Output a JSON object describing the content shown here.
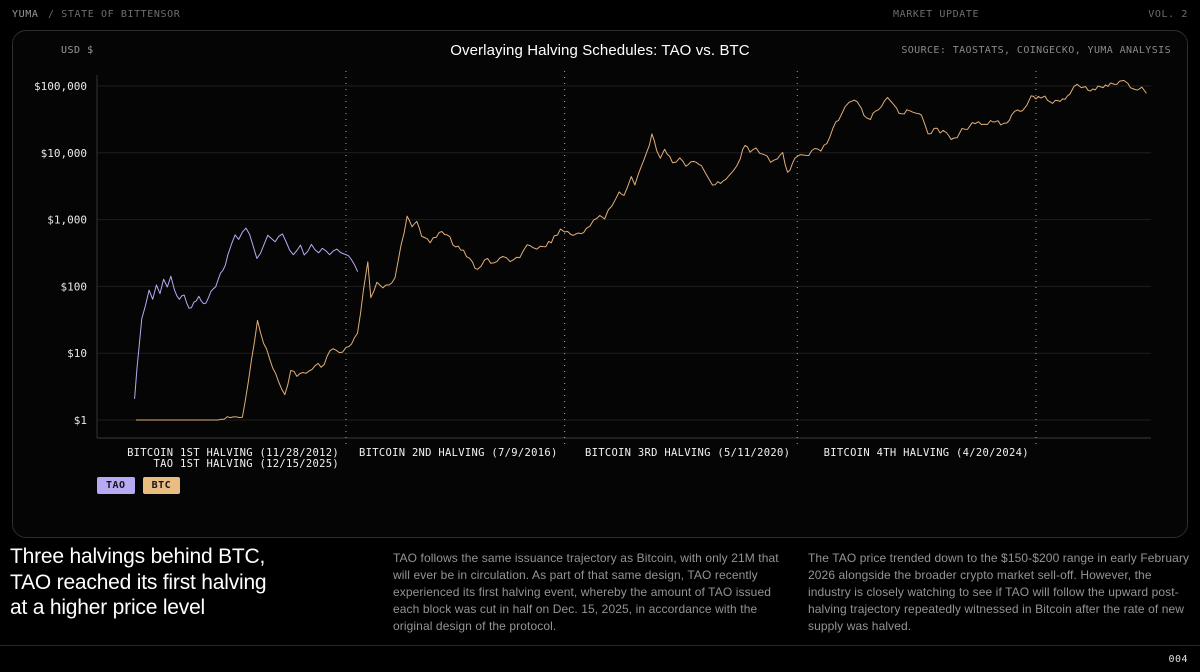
{
  "topbar": {
    "brand": "YUMA",
    "section": "/ STATE OF BITTENSOR",
    "market": "MARKET UPDATE",
    "volume": "VOL. 2"
  },
  "panel": {
    "axis_unit": "USD $",
    "title": "Overlaying Halving Schedules: TAO vs. BTC",
    "source": "SOURCE: TAOSTATS, COINGECKO, YUMA ANALYSIS"
  },
  "chart_data": {
    "type": "line",
    "title": "Overlaying Halving Schedules: TAO vs. BTC",
    "y_scale": "log",
    "y_axis_unit": "USD $",
    "y_ticks": [
      {
        "label": "$100,000",
        "value": 100000
      },
      {
        "label": "$10,000",
        "value": 10000
      },
      {
        "label": "$1,000",
        "value": 1000
      },
      {
        "label": "$100",
        "value": 100
      },
      {
        "label": "$10",
        "value": 10
      },
      {
        "label": "$1",
        "value": 1
      }
    ],
    "x_domain_years": [
      2008.8,
      2026.2
    ],
    "x_axis_note": "BTC plotted on its own timeline 2009-2026; TAO timeline shifted so its 1st halving (12/15/2025) aligns with BTC's 1st halving (11/28/2012)",
    "halving_markers": [
      {
        "year": 2012.91,
        "label": "BITCOIN 1ST HALVING (11/28/2012)",
        "sublabel": "TAO 1ST HALVING (12/15/2025)"
      },
      {
        "year": 2016.52,
        "label": "BITCOIN 2ND HALVING (7/9/2016)"
      },
      {
        "year": 2020.36,
        "label": "BITCOIN 3RD HALVING (5/11/2020)"
      },
      {
        "year": 2024.3,
        "label": "BITCOIN 4TH HALVING (4/20/2024)"
      }
    ],
    "legend": [
      {
        "label": "TAO",
        "color": "#b7aaf2"
      },
      {
        "label": "BTC",
        "color": "#e9bc80"
      }
    ],
    "series": [
      {
        "name": "BTC",
        "color": "#dfae79",
        "points": [
          [
            2009.45,
            1
          ],
          [
            2010.8,
            1
          ],
          [
            2011.2,
            1.1
          ],
          [
            2011.35,
            8
          ],
          [
            2011.45,
            31
          ],
          [
            2011.55,
            14
          ],
          [
            2011.7,
            6
          ],
          [
            2011.9,
            2.4
          ],
          [
            2012.0,
            5.5
          ],
          [
            2012.1,
            4.5
          ],
          [
            2012.25,
            5
          ],
          [
            2012.4,
            6.5
          ],
          [
            2012.55,
            6.8
          ],
          [
            2012.65,
            11
          ],
          [
            2012.8,
            10.2
          ],
          [
            2012.91,
            12.2
          ],
          [
            2013.0,
            13.6
          ],
          [
            2013.1,
            20
          ],
          [
            2013.2,
            90
          ],
          [
            2013.27,
            233
          ],
          [
            2013.32,
            68
          ],
          [
            2013.42,
            115
          ],
          [
            2013.52,
            95
          ],
          [
            2013.62,
            105
          ],
          [
            2013.72,
            135
          ],
          [
            2013.82,
            420
          ],
          [
            2013.92,
            1130
          ],
          [
            2014.0,
            780
          ],
          [
            2014.08,
            940
          ],
          [
            2014.16,
            560
          ],
          [
            2014.3,
            450
          ],
          [
            2014.45,
            640
          ],
          [
            2014.58,
            590
          ],
          [
            2014.72,
            390
          ],
          [
            2014.85,
            350
          ],
          [
            2015.0,
            230
          ],
          [
            2015.08,
            180
          ],
          [
            2015.2,
            250
          ],
          [
            2015.35,
            225
          ],
          [
            2015.5,
            280
          ],
          [
            2015.62,
            235
          ],
          [
            2015.78,
            270
          ],
          [
            2015.9,
            420
          ],
          [
            2016.0,
            380
          ],
          [
            2016.12,
            400
          ],
          [
            2016.3,
            450
          ],
          [
            2016.45,
            720
          ],
          [
            2016.52,
            655
          ],
          [
            2016.62,
            600
          ],
          [
            2016.75,
            630
          ],
          [
            2016.88,
            740
          ],
          [
            2017.0,
            990
          ],
          [
            2017.1,
            1150
          ],
          [
            2017.18,
            1020
          ],
          [
            2017.3,
            1600
          ],
          [
            2017.42,
            2600
          ],
          [
            2017.5,
            2300
          ],
          [
            2017.62,
            4400
          ],
          [
            2017.68,
            3300
          ],
          [
            2017.78,
            6100
          ],
          [
            2017.88,
            10500
          ],
          [
            2017.96,
            19200
          ],
          [
            2018.04,
            10800
          ],
          [
            2018.1,
            8300
          ],
          [
            2018.17,
            11300
          ],
          [
            2018.3,
            7100
          ],
          [
            2018.42,
            8400
          ],
          [
            2018.52,
            6300
          ],
          [
            2018.65,
            7400
          ],
          [
            2018.78,
            6400
          ],
          [
            2018.9,
            4100
          ],
          [
            2018.96,
            3300
          ],
          [
            2019.05,
            3700
          ],
          [
            2019.18,
            4000
          ],
          [
            2019.3,
            5300
          ],
          [
            2019.42,
            8200
          ],
          [
            2019.5,
            12900
          ],
          [
            2019.58,
            10200
          ],
          [
            2019.68,
            11800
          ],
          [
            2019.8,
            9500
          ],
          [
            2019.92,
            7200
          ],
          [
            2020.03,
            8100
          ],
          [
            2020.12,
            10100
          ],
          [
            2020.2,
            5100
          ],
          [
            2020.28,
            6900
          ],
          [
            2020.36,
            8800
          ],
          [
            2020.45,
            9300
          ],
          [
            2020.55,
            9100
          ],
          [
            2020.65,
            11600
          ],
          [
            2020.75,
            10600
          ],
          [
            2020.85,
            13800
          ],
          [
            2020.95,
            23500
          ],
          [
            2021.0,
            29300
          ],
          [
            2021.08,
            36000
          ],
          [
            2021.15,
            49000
          ],
          [
            2021.22,
            57500
          ],
          [
            2021.3,
            61500
          ],
          [
            2021.35,
            58000
          ],
          [
            2021.42,
            46000
          ],
          [
            2021.5,
            33500
          ],
          [
            2021.57,
            31500
          ],
          [
            2021.65,
            42000
          ],
          [
            2021.75,
            49000
          ],
          [
            2021.85,
            67500
          ],
          [
            2021.92,
            57000
          ],
          [
            2022.0,
            46500
          ],
          [
            2022.08,
            38500
          ],
          [
            2022.17,
            44000
          ],
          [
            2022.27,
            40500
          ],
          [
            2022.37,
            38500
          ],
          [
            2022.45,
            29500
          ],
          [
            2022.52,
            19200
          ],
          [
            2022.62,
            23200
          ],
          [
            2022.72,
            19800
          ],
          [
            2022.82,
            20100
          ],
          [
            2022.9,
            15800
          ],
          [
            2023.0,
            16800
          ],
          [
            2023.08,
            23100
          ],
          [
            2023.17,
            22400
          ],
          [
            2023.25,
            28300
          ],
          [
            2023.35,
            29200
          ],
          [
            2023.45,
            26800
          ],
          [
            2023.55,
            30400
          ],
          [
            2023.63,
            29200
          ],
          [
            2023.72,
            26100
          ],
          [
            2023.82,
            27900
          ],
          [
            2023.9,
            37000
          ],
          [
            2024.0,
            43800
          ],
          [
            2024.08,
            42800
          ],
          [
            2024.15,
            51500
          ],
          [
            2024.22,
            71000
          ],
          [
            2024.3,
            63800
          ],
          [
            2024.38,
            66200
          ],
          [
            2024.45,
            70500
          ],
          [
            2024.53,
            58200
          ],
          [
            2024.62,
            60800
          ],
          [
            2024.7,
            58900
          ],
          [
            2024.78,
            63200
          ],
          [
            2024.86,
            75500
          ],
          [
            2024.93,
            99000
          ],
          [
            2024.98,
            106000
          ],
          [
            2025.05,
            94500
          ],
          [
            2025.12,
            97800
          ],
          [
            2025.2,
            84200
          ],
          [
            2025.28,
            87500
          ],
          [
            2025.37,
            97000
          ],
          [
            2025.45,
            104000
          ],
          [
            2025.53,
            111000
          ],
          [
            2025.6,
            105500
          ],
          [
            2025.68,
            118000
          ],
          [
            2025.75,
            121500
          ],
          [
            2025.82,
            109000
          ],
          [
            2025.9,
            91500
          ],
          [
            2025.98,
            87000
          ],
          [
            2026.05,
            96000
          ],
          [
            2026.12,
            78500
          ]
        ]
      },
      {
        "name": "TAO",
        "color": "#b7aaf2",
        "points": [
          [
            2009.42,
            2.1
          ],
          [
            2009.46,
            6
          ],
          [
            2009.5,
            14
          ],
          [
            2009.54,
            33
          ],
          [
            2009.6,
            52
          ],
          [
            2009.66,
            88
          ],
          [
            2009.72,
            64
          ],
          [
            2009.78,
            105
          ],
          [
            2009.84,
            78
          ],
          [
            2009.9,
            128
          ],
          [
            2009.96,
            98
          ],
          [
            2010.02,
            142
          ],
          [
            2010.08,
            88
          ],
          [
            2010.16,
            64
          ],
          [
            2010.24,
            74
          ],
          [
            2010.32,
            47
          ],
          [
            2010.4,
            58
          ],
          [
            2010.48,
            71
          ],
          [
            2010.56,
            55
          ],
          [
            2010.64,
            68
          ],
          [
            2010.72,
            92
          ],
          [
            2010.8,
            126
          ],
          [
            2010.88,
            175
          ],
          [
            2010.96,
            295
          ],
          [
            2011.02,
            430
          ],
          [
            2011.08,
            590
          ],
          [
            2011.14,
            505
          ],
          [
            2011.2,
            650
          ],
          [
            2011.26,
            745
          ],
          [
            2011.32,
            600
          ],
          [
            2011.38,
            395
          ],
          [
            2011.44,
            262
          ],
          [
            2011.5,
            315
          ],
          [
            2011.56,
            430
          ],
          [
            2011.62,
            585
          ],
          [
            2011.68,
            520
          ],
          [
            2011.74,
            466
          ],
          [
            2011.8,
            560
          ],
          [
            2011.86,
            610
          ],
          [
            2011.92,
            470
          ],
          [
            2011.98,
            350
          ],
          [
            2012.04,
            298
          ],
          [
            2012.1,
            345
          ],
          [
            2012.16,
            415
          ],
          [
            2012.22,
            295
          ],
          [
            2012.28,
            335
          ],
          [
            2012.34,
            425
          ],
          [
            2012.4,
            352
          ],
          [
            2012.46,
            318
          ],
          [
            2012.52,
            372
          ],
          [
            2012.58,
            340
          ],
          [
            2012.64,
            298
          ],
          [
            2012.7,
            338
          ],
          [
            2012.76,
            362
          ],
          [
            2012.82,
            322
          ],
          [
            2012.88,
            305
          ],
          [
            2012.95,
            288
          ],
          [
            2013.0,
            252
          ],
          [
            2013.05,
            212
          ],
          [
            2013.1,
            168
          ]
        ]
      }
    ]
  },
  "bottom": {
    "headline": "Three halvings behind BTC,\nTAO reached its first halving\nat a higher price level",
    "col1": "TAO follows the same issuance trajectory as Bitcoin, with only 21M that will ever be in circulation. As part of that same design, TAO recently experienced its first halving event, whereby the amount of TAO issued each block was cut in half on Dec. 15, 2025, in accordance with the original design of the protocol.",
    "col2": "The TAO price trended down to the $150-$200 range in early February 2026 alongside the broader crypto market sell-off. However, the industry is closely watching to see if TAO will follow the upward post-halving trajectory repeatedly witnessed in Bitcoin after the rate of new supply was halved."
  },
  "footer": {
    "page": "004"
  }
}
